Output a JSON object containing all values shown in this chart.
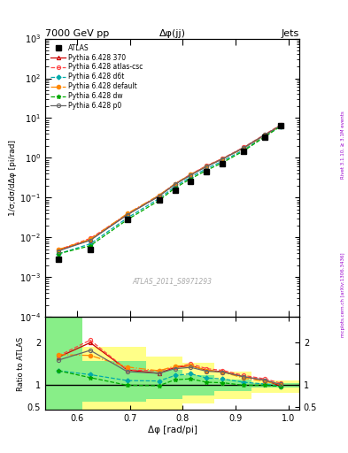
{
  "title_top": "7000 GeV pp",
  "title_right": "Jets",
  "plot_title": "Δφ(jj)",
  "watermark": "ATLAS_2011_S8971293",
  "ylabel_main": "1/σ;dσ/dΔφ [pi/rad]",
  "ylabel_ratio": "Ratio to ATLAS",
  "xlabel": "Δφ [rad/pi]",
  "right_label": "Rivet 3.1.10, ≥ 3.1M events",
  "right_label2": "mcplots.cern.ch [arXiv:1306.3436]",
  "atlas_x": [
    0.565,
    0.625,
    0.695,
    0.755,
    0.785,
    0.815,
    0.845,
    0.875,
    0.915,
    0.955,
    0.985
  ],
  "atlas_y": [
    0.0029,
    0.0051,
    0.028,
    0.086,
    0.155,
    0.26,
    0.46,
    0.72,
    1.5,
    3.4,
    6.5
  ],
  "pythia_x": [
    0.565,
    0.625,
    0.695,
    0.755,
    0.785,
    0.815,
    0.845,
    0.875,
    0.915,
    0.955,
    0.985
  ],
  "p370_y": [
    0.0048,
    0.0087,
    0.038,
    0.11,
    0.22,
    0.38,
    0.62,
    0.95,
    1.8,
    3.8,
    6.4
  ],
  "atlas_csc_y": [
    0.0049,
    0.0095,
    0.038,
    0.115,
    0.22,
    0.39,
    0.64,
    0.97,
    1.85,
    3.9,
    6.8
  ],
  "d6t_y": [
    0.0039,
    0.0069,
    0.031,
    0.095,
    0.19,
    0.33,
    0.54,
    0.83,
    1.6,
    3.5,
    6.3
  ],
  "default_y": [
    0.005,
    0.009,
    0.04,
    0.115,
    0.225,
    0.38,
    0.62,
    0.94,
    1.75,
    3.7,
    6.6
  ],
  "dw_y": [
    0.0039,
    0.0062,
    0.028,
    0.085,
    0.175,
    0.3,
    0.49,
    0.76,
    1.5,
    3.4,
    6.3
  ],
  "p0_y": [
    0.0046,
    0.0085,
    0.037,
    0.11,
    0.215,
    0.37,
    0.61,
    0.94,
    1.8,
    3.8,
    6.6
  ],
  "ratio_370": [
    1.66,
    2.0,
    1.36,
    1.28,
    1.42,
    1.46,
    1.35,
    1.32,
    1.2,
    1.12,
    0.98
  ],
  "ratio_atlas_csc": [
    1.69,
    2.06,
    1.36,
    1.34,
    1.42,
    1.5,
    1.39,
    1.35,
    1.23,
    1.15,
    1.05
  ],
  "ratio_d6t": [
    1.34,
    1.25,
    1.11,
    1.1,
    1.23,
    1.27,
    1.17,
    1.15,
    1.07,
    1.03,
    0.97
  ],
  "ratio_default": [
    1.72,
    1.7,
    1.43,
    1.34,
    1.45,
    1.46,
    1.35,
    1.31,
    1.17,
    1.09,
    1.02
  ],
  "ratio_dw": [
    1.34,
    1.18,
    1.0,
    0.99,
    1.13,
    1.15,
    1.07,
    1.06,
    1.0,
    1.0,
    0.97
  ],
  "ratio_p0": [
    1.59,
    1.82,
    1.32,
    1.28,
    1.39,
    1.42,
    1.33,
    1.31,
    1.2,
    1.12,
    1.02
  ],
  "band_x_edges": [
    0.54,
    0.61,
    0.73,
    0.8,
    0.86,
    0.93,
    1.02
  ],
  "yellow_up": [
    2.6,
    1.9,
    1.68,
    1.52,
    1.32,
    1.12,
    1.06
  ],
  "yellow_dn": [
    0.42,
    0.42,
    0.42,
    0.58,
    0.68,
    0.83,
    0.91
  ],
  "green_up": [
    2.6,
    1.58,
    1.37,
    1.24,
    1.14,
    1.06,
    1.03
  ],
  "green_dn": [
    0.42,
    0.62,
    0.68,
    0.76,
    0.86,
    0.94,
    0.97
  ],
  "color_370": "#cc0000",
  "color_atlas_csc": "#ff4444",
  "color_d6t": "#00aaaa",
  "color_default": "#ff8800",
  "color_dw": "#00aa00",
  "color_p0": "#666666",
  "xlim": [
    0.54,
    1.02
  ],
  "ylim_main": [
    0.0001,
    1000.0
  ],
  "ylim_ratio": [
    0.42,
    2.6
  ],
  "ratio_yticks": [
    0.5,
    1.0,
    1.5,
    2.0
  ],
  "ratio_ytick_labels": [
    "0.5",
    "1",
    "",
    "2"
  ]
}
